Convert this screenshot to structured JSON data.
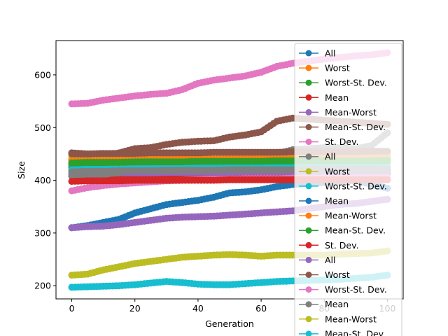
{
  "chart_data": {
    "type": "line",
    "title": "",
    "xlabel": "Generation",
    "ylabel": "Size",
    "xlim": [
      -5,
      105
    ],
    "ylim": [
      175,
      665
    ],
    "xticks": [
      0,
      20,
      40,
      60,
      80,
      100
    ],
    "yticks": [
      200,
      300,
      400,
      500,
      600
    ],
    "grid": false,
    "legend_position": "right",
    "x": [
      0,
      5,
      10,
      15,
      20,
      25,
      30,
      35,
      40,
      45,
      50,
      55,
      60,
      65,
      70,
      75,
      80,
      85,
      90,
      95,
      100
    ],
    "series": [
      {
        "name": "All",
        "color": "#1f77b4",
        "values": [
          425,
          426,
          427,
          428,
          428,
          429,
          429,
          430,
          430,
          431,
          431,
          432,
          432,
          432,
          433,
          433,
          433,
          434,
          434,
          434,
          435
        ]
      },
      {
        "name": "Worst",
        "color": "#ff7f0e",
        "values": [
          440,
          441,
          441,
          442,
          442,
          443,
          443,
          443,
          444,
          444,
          444,
          445,
          445,
          445,
          445,
          446,
          446,
          446,
          446,
          447,
          447
        ]
      },
      {
        "name": "Worst-St. Dev.",
        "color": "#2ca02c",
        "values": [
          430,
          431,
          431,
          432,
          432,
          432,
          433,
          433,
          433,
          434,
          434,
          434,
          434,
          435,
          435,
          435,
          435,
          436,
          436,
          436,
          436
        ]
      },
      {
        "name": "Mean",
        "color": "#d62728",
        "values": [
          408,
          409,
          409,
          410,
          410,
          410,
          411,
          411,
          411,
          411,
          412,
          412,
          412,
          412,
          412,
          413,
          413,
          413,
          413,
          413,
          413
        ]
      },
      {
        "name": "Mean-Worst",
        "color": "#9467bd",
        "values": [
          412,
          413,
          413,
          414,
          414,
          414,
          415,
          415,
          415,
          415,
          415,
          416,
          416,
          416,
          416,
          416,
          416,
          417,
          417,
          417,
          417
        ]
      },
      {
        "name": "Mean-St. Dev.",
        "color": "#8c564b",
        "values": [
          452,
          450,
          447,
          452,
          460,
          462,
          468,
          472,
          474,
          475,
          482,
          486,
          492,
          512,
          518,
          516,
          514,
          512,
          510,
          508,
          506
        ]
      },
      {
        "name": "St. Dev.",
        "color": "#e377c2",
        "values": [
          380,
          386,
          390,
          393,
          395,
          397,
          399,
          400,
          401,
          402,
          402,
          403,
          403,
          403,
          404,
          404,
          404,
          404,
          405,
          405,
          405
        ]
      },
      {
        "name": "All",
        "color": "#7f7f7f",
        "values": [
          408,
          410,
          411,
          415,
          420,
          428,
          430,
          428,
          426,
          424,
          428,
          430,
          440,
          450,
          458,
          460,
          462,
          462,
          460,
          466,
          490
        ]
      },
      {
        "name": "Worst",
        "color": "#bcbd22",
        "values": [
          445,
          446,
          446,
          447,
          447,
          447,
          448,
          448,
          448,
          448,
          449,
          449,
          449,
          449,
          449,
          450,
          450,
          450,
          450,
          450,
          450
        ]
      },
      {
        "name": "Worst-St. Dev.",
        "color": "#17becf",
        "values": [
          420,
          421,
          421,
          422,
          422,
          422,
          423,
          423,
          423,
          423,
          424,
          424,
          424,
          424,
          424,
          425,
          425,
          425,
          425,
          425,
          425
        ]
      },
      {
        "name": "Mean",
        "color": "#1f77b4",
        "values": [
          310,
          314,
          320,
          326,
          338,
          346,
          354,
          358,
          362,
          368,
          376,
          378,
          382,
          388,
          392,
          394,
          396,
          398,
          400,
          392,
          385
        ]
      },
      {
        "name": "Mean-Worst",
        "color": "#ff7f0e",
        "values": [
          437,
          438,
          438,
          439,
          439,
          439,
          440,
          440,
          440,
          440,
          441,
          441,
          441,
          441,
          441,
          442,
          442,
          442,
          442,
          442,
          442
        ]
      },
      {
        "name": "Mean-St. Dev.",
        "color": "#2ca02c",
        "values": [
          433,
          434,
          434,
          434,
          435,
          435,
          435,
          435,
          436,
          436,
          436,
          436,
          436,
          437,
          437,
          437,
          437,
          437,
          437,
          437,
          438
        ]
      },
      {
        "name": "St. Dev.",
        "color": "#d62728",
        "values": [
          398,
          399,
          399,
          399,
          400,
          400,
          400,
          400,
          400,
          400,
          401,
          401,
          401,
          401,
          401,
          401,
          401,
          401,
          401,
          401,
          401
        ]
      },
      {
        "name": "All",
        "color": "#9467bd",
        "values": [
          310,
          312,
          313,
          316,
          320,
          324,
          328,
          330,
          331,
          332,
          334,
          336,
          338,
          340,
          342,
          346,
          350,
          354,
          356,
          360,
          364
        ]
      },
      {
        "name": "Worst",
        "color": "#8c564b",
        "values": [
          450,
          450,
          451,
          451,
          451,
          452,
          452,
          452,
          452,
          453,
          453,
          453,
          453,
          453,
          454,
          454,
          454,
          454,
          454,
          455,
          455
        ]
      },
      {
        "name": "Worst-St. Dev.",
        "color": "#e377c2",
        "values": [
          545,
          546,
          552,
          556,
          560,
          563,
          565,
          572,
          584,
          590,
          594,
          598,
          605,
          616,
          622,
          626,
          630,
          633,
          636,
          638,
          642
        ]
      },
      {
        "name": "Mean",
        "color": "#7f7f7f",
        "values": [
          416,
          417,
          417,
          418,
          418,
          418,
          419,
          419,
          419,
          419,
          420,
          420,
          420,
          420,
          420,
          421,
          421,
          421,
          421,
          421,
          421
        ]
      },
      {
        "name": "Mean-Worst",
        "color": "#bcbd22",
        "values": [
          220,
          222,
          230,
          236,
          242,
          246,
          250,
          254,
          256,
          258,
          259,
          258,
          256,
          258,
          258,
          258,
          258,
          260,
          261,
          262,
          266
        ]
      },
      {
        "name": "Mean-St. Dev.",
        "color": "#17becf",
        "values": [
          197,
          198,
          199,
          200,
          202,
          205,
          208,
          206,
          203,
          202,
          202,
          204,
          206,
          208,
          209,
          210,
          211,
          212,
          214,
          216,
          220
        ]
      }
    ]
  }
}
